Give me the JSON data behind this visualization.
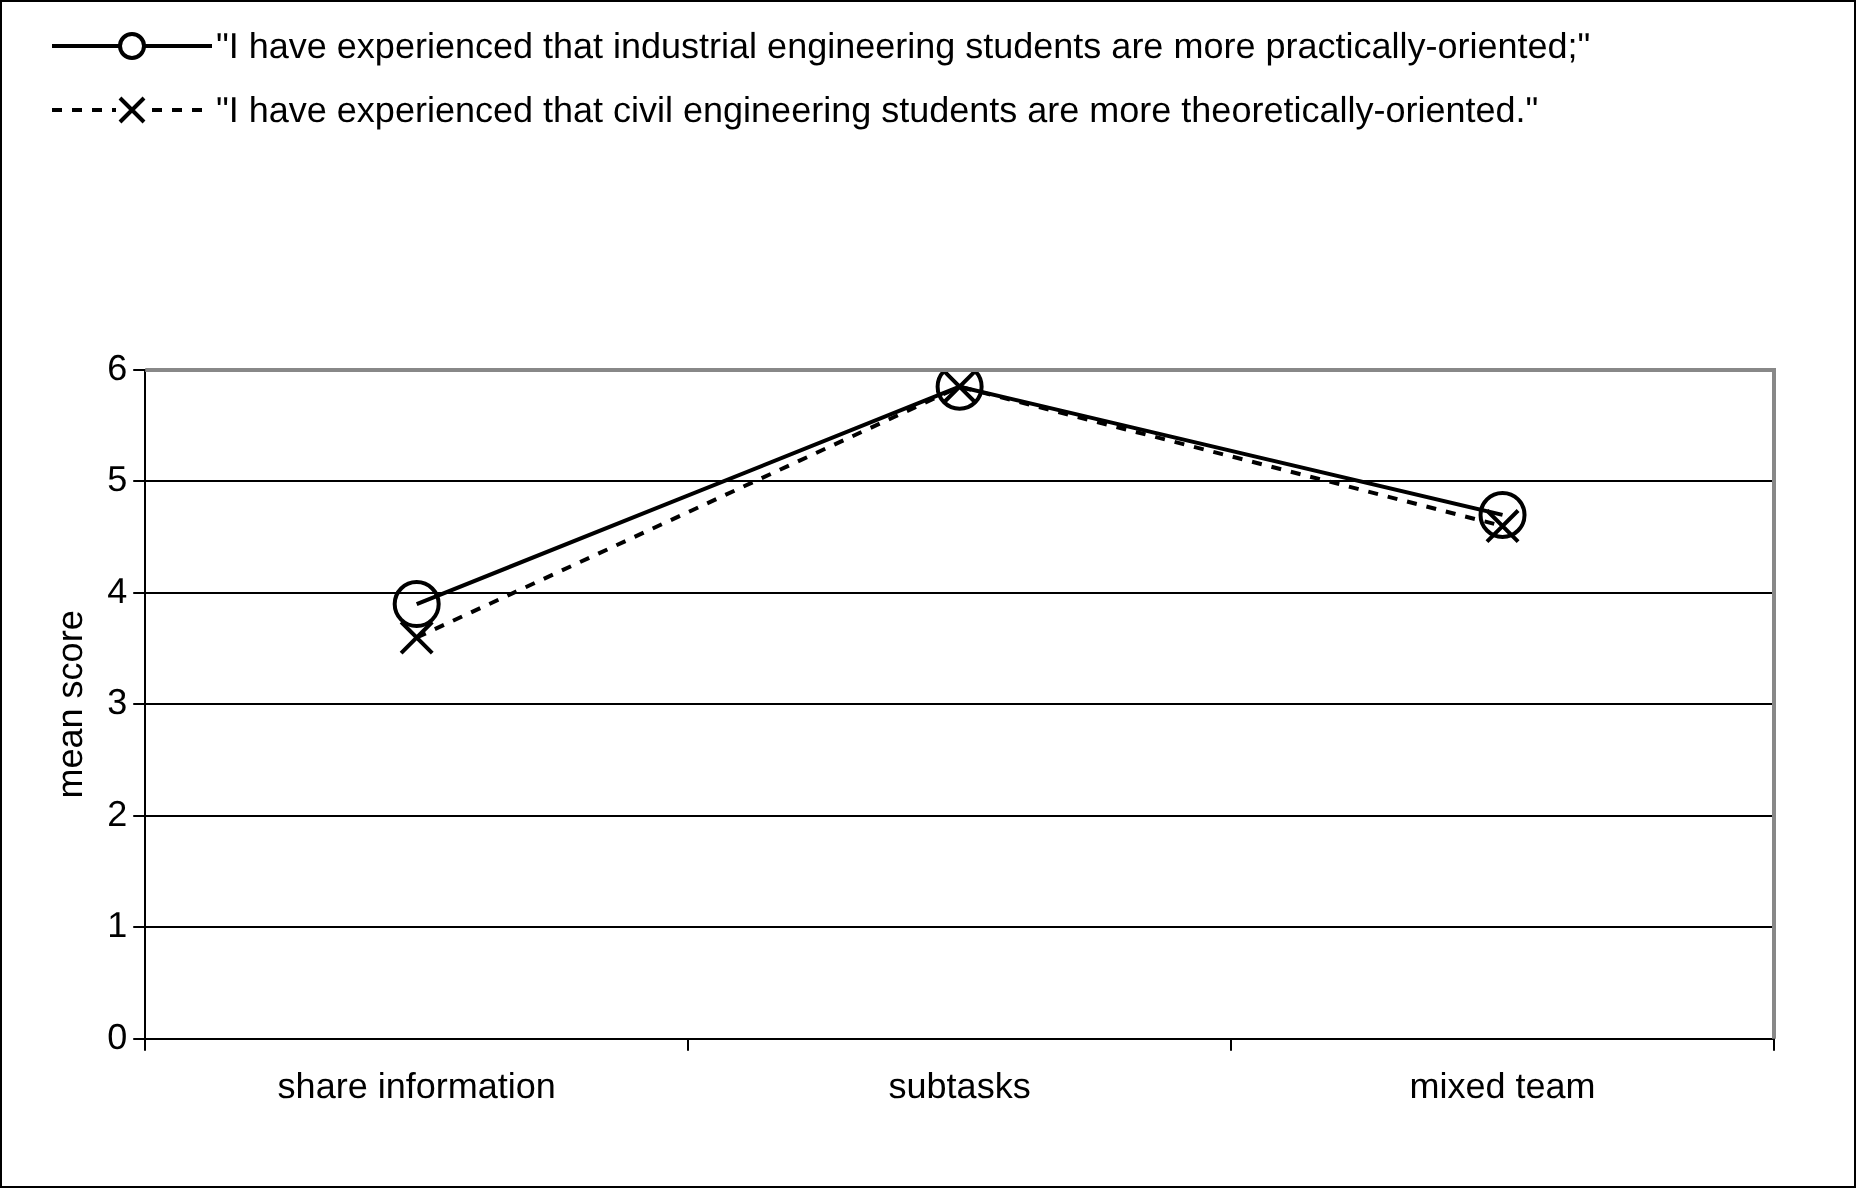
{
  "chart_data": {
    "type": "line",
    "ylabel": "mean score",
    "categories": [
      "share information",
      "subtasks",
      "mixed team"
    ],
    "series": [
      {
        "name": "\"I have experienced that industrial engineering students are more practically-oriented;\"",
        "color": "#000000",
        "values": [
          3.9,
          5.85,
          4.7
        ],
        "marker": "circle",
        "line_style": "solid"
      },
      {
        "name": "\"I have experienced that civil engineering students are more theoretically-oriented.\"",
        "color": "#000000",
        "values": [
          3.6,
          5.85,
          4.6
        ],
        "marker": "cross",
        "line_style": "dashed"
      }
    ],
    "ylim": [
      0,
      6
    ],
    "yticks": [
      0,
      1,
      2,
      3,
      4,
      5,
      6
    ],
    "grid": "y",
    "legend": "top"
  }
}
